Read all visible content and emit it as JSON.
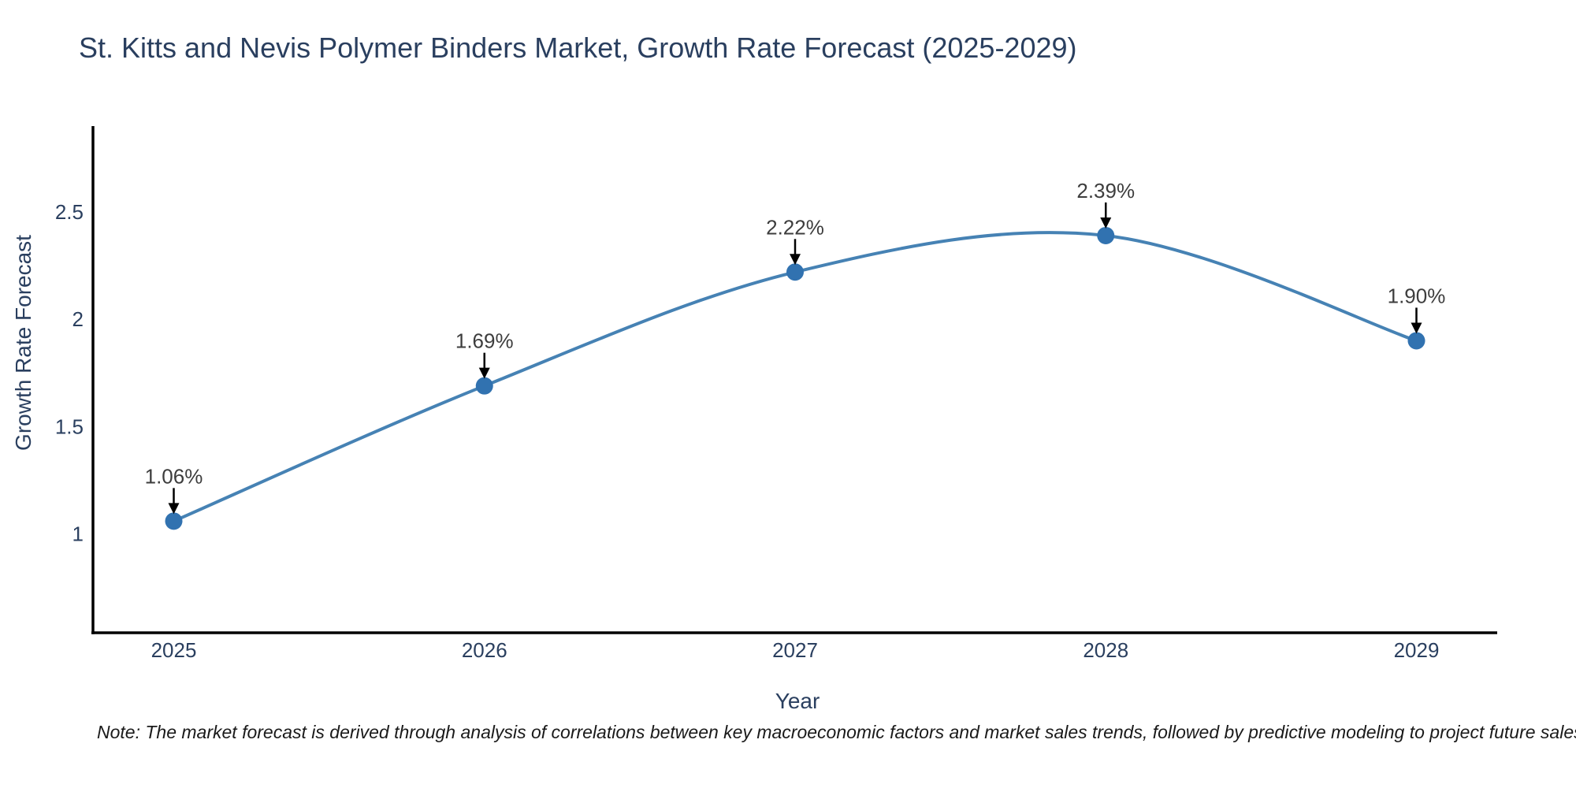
{
  "chart": {
    "title": "St. Kitts and Nevis Polymer Binders Market, Growth Rate Forecast (2025-2029)",
    "x_axis_title": "Year",
    "y_axis_title": "Growth Rate Forecast",
    "note": "Note: The market forecast is derived through analysis of correlations between key macroeconomic factors and market sales trends, followed by predictive modeling to project future sales"
  },
  "chart_data": {
    "type": "line",
    "title": "St. Kitts and Nevis Polymer Binders Market, Growth Rate Forecast (2025-2029)",
    "xlabel": "Year",
    "ylabel": "Growth Rate Forecast",
    "x": [
      2025,
      2026,
      2027,
      2028,
      2029
    ],
    "series": [
      {
        "name": "Growth Rate Forecast",
        "values": [
          1.06,
          1.69,
          2.22,
          2.39,
          1.9
        ]
      }
    ],
    "point_labels": [
      "1.06%",
      "1.69%",
      "2.22%",
      "2.39%",
      "1.90%"
    ],
    "xtick_labels": [
      "2025",
      "2026",
      "2027",
      "2028",
      "2029"
    ],
    "yticks": [
      1,
      1.5,
      2,
      2.5
    ],
    "ytick_labels": [
      "1",
      "1.5",
      "2",
      "2.5"
    ],
    "xlim": [
      2024.74,
      2029.26
    ],
    "ylim": [
      0.54,
      2.9
    ],
    "line_shape": "spline",
    "grid": false,
    "legend": false,
    "colors": {
      "line": "#4682b4",
      "marker": "#3172b0",
      "axis": "#000000",
      "tick_text": "#2a3f5f",
      "annotation_text": "#3d3d3d",
      "arrow": "#000000"
    }
  }
}
